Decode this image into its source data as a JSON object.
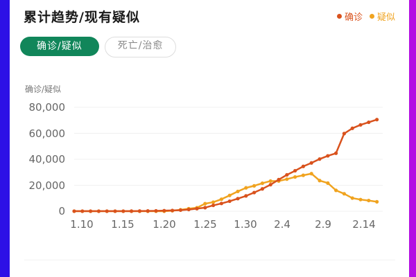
{
  "header": {
    "title": "累计趋势/现有疑似",
    "legend": [
      {
        "label": "确诊",
        "color": "#d9521d"
      },
      {
        "label": "疑似",
        "color": "#f0a31f"
      }
    ]
  },
  "tabs": [
    {
      "label": "确诊/疑似",
      "active": true
    },
    {
      "label": "死亡/治愈",
      "active": false
    }
  ],
  "colors": {
    "accent": "#11865a",
    "confirmed": "#d9521d",
    "suspected": "#f0a31f",
    "frame_left": "#2d10e6",
    "frame_right": "#b30fe3"
  },
  "chart_data": {
    "type": "line",
    "title": "累计趋势/现有疑似",
    "ylabel": "确诊/疑似",
    "xlabel": "",
    "ylim": [
      0,
      80000
    ],
    "yticks": [
      "0",
      "20,000",
      "40,000",
      "60,000",
      "80,000"
    ],
    "xticks": [
      "1.10",
      "1.15",
      "1.20",
      "1.25",
      "1.30",
      "2.4",
      "2.9",
      "2.14"
    ],
    "grid": true,
    "legend_position": "top-right",
    "x": [
      "1.10",
      "1.11",
      "1.12",
      "1.13",
      "1.14",
      "1.15",
      "1.16",
      "1.17",
      "1.18",
      "1.19",
      "1.20",
      "1.21",
      "1.22",
      "1.23",
      "1.24",
      "1.25",
      "1.26",
      "1.27",
      "1.28",
      "1.29",
      "1.30",
      "1.31",
      "2.1",
      "2.2",
      "2.3",
      "2.4",
      "2.5",
      "2.6",
      "2.7",
      "2.8",
      "2.9",
      "2.10",
      "2.11",
      "2.12",
      "2.13",
      "2.14",
      "2.15",
      "2.16"
    ],
    "series": [
      {
        "name": "确诊",
        "color": "#d9521d",
        "values": [
          41,
          41,
          41,
          41,
          41,
          41,
          45,
          62,
          121,
          198,
          291,
          440,
          571,
          830,
          1287,
          1975,
          2744,
          4515,
          5974,
          7711,
          9692,
          11791,
          14380,
          17205,
          20438,
          24324,
          28018,
          31161,
          34546,
          37198,
          40171,
          42638,
          44653,
          59804,
          63851,
          66492,
          68500,
          70548
        ]
      },
      {
        "name": "疑似",
        "color": "#f0a31f",
        "values": [
          0,
          0,
          0,
          0,
          0,
          0,
          0,
          0,
          0,
          0,
          0,
          0,
          393,
          1072,
          1965,
          2684,
          5794,
          6973,
          9239,
          12167,
          15238,
          17988,
          19544,
          21558,
          23214,
          23260,
          24702,
          26359,
          27657,
          28942,
          23589,
          21675,
          16067,
          13435,
          10109,
          8969,
          8228,
          7264
        ]
      }
    ]
  }
}
